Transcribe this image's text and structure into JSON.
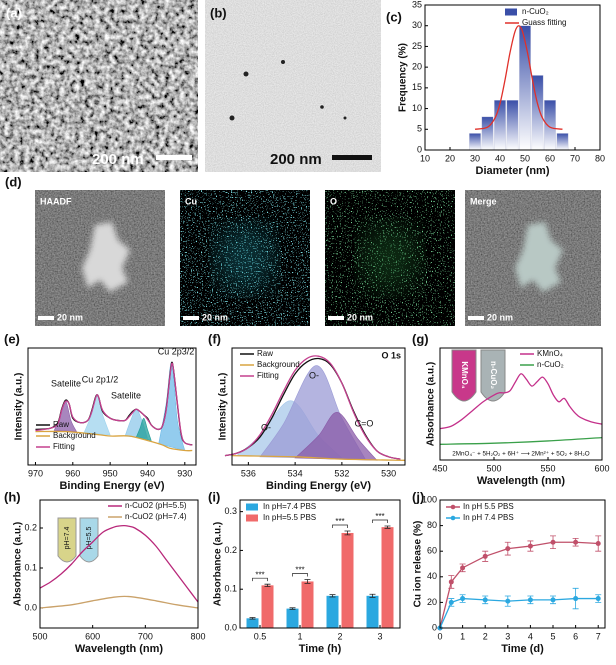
{
  "images": {
    "a": {
      "panel": "(a)",
      "scale_bar": "200 nm"
    },
    "b": {
      "panel": "(b)",
      "scale_bar": "200 nm"
    },
    "d": {
      "panel": "(d)",
      "maps": [
        {
          "label": "HAADF",
          "scale_bar": "20 nm"
        },
        {
          "label": "Cu",
          "scale_bar": "20 nm"
        },
        {
          "label": "O",
          "scale_bar": "20 nm"
        },
        {
          "label": "Merge",
          "scale_bar": "20 nm"
        }
      ]
    }
  },
  "chart_data": [
    {
      "type": "histogram",
      "panel": "(c)",
      "xlabel": "Diameter (nm)",
      "ylabel": "Frequency (%)",
      "name": "n-CuO₂",
      "color": "#3a4fa8",
      "bins": [
        27.5,
        32.5,
        37.5,
        42.5,
        47.5,
        52.5,
        57.5,
        62.5,
        67.5
      ],
      "values": [
        4,
        8,
        12,
        12,
        30,
        18,
        12,
        4
      ],
      "series": [
        {
          "name": "Guass fitting",
          "color": "#e0302a",
          "x": [
            30,
            35,
            38,
            40,
            42,
            44,
            46,
            47.5,
            49,
            51,
            53,
            55,
            57,
            60,
            65
          ],
          "values": [
            5.0,
            5.5,
            7.7,
            11.2,
            16.9,
            23.5,
            28.6,
            30,
            28.6,
            23.5,
            16.9,
            11.2,
            7.7,
            5.5,
            5.0
          ]
        }
      ],
      "xlim": [
        10,
        80
      ],
      "xticks": [
        10,
        20,
        30,
        40,
        50,
        60,
        70,
        80
      ],
      "ylim": [
        0,
        35
      ],
      "yticks": [
        0,
        5,
        10,
        15,
        20,
        25,
        30,
        35
      ]
    },
    {
      "type": "line",
      "panel": "(e)",
      "xlabel": "Binding Energy (eV)",
      "ylabel": "Intensity (a.u.)",
      "annotations": [
        "Satelite",
        "Cu 2p1/2",
        "Satelite",
        "Cu 2p3/2"
      ],
      "xlim": [
        972,
        927
      ],
      "xticks": [
        970,
        960,
        950,
        940,
        930
      ],
      "ylim": [
        0,
        105
      ],
      "components": [
        {
          "color": "#8b5ea8",
          "x": [
            965,
            963.5,
            962,
            960.5,
            959
          ],
          "values": [
            31,
            42,
            58,
            40,
            30
          ]
        },
        {
          "color": "#9dd3ee",
          "x": [
            957,
            955,
            953.5,
            952,
            950
          ],
          "values": [
            29,
            45,
            63,
            45,
            27
          ]
        },
        {
          "color": "#8fc8ea",
          "x": [
            946,
            944.5,
            943,
            941.5,
            940
          ],
          "values": [
            26,
            40,
            50,
            40,
            24
          ]
        },
        {
          "color": "#1f9e9a",
          "x": [
            943,
            942,
            941,
            940,
            939
          ],
          "values": [
            25,
            33,
            42,
            32,
            22
          ]
        },
        {
          "color": "#6fbbe8",
          "x": [
            937,
            935,
            933.5,
            932,
            930
          ],
          "values": [
            19,
            55,
            92,
            40,
            13
          ]
        }
      ],
      "series": [
        {
          "name": "Raw",
          "color": "#111111",
          "x": [
            970,
            966,
            964,
            963,
            962,
            961,
            960,
            958,
            956,
            955,
            954,
            953.5,
            953,
            952,
            950,
            948,
            946,
            945,
            944,
            943,
            942,
            941,
            940,
            939,
            938,
            937,
            936,
            935,
            934,
            933.5,
            933,
            932,
            931,
            930,
            928
          ],
          "values": [
            32,
            33,
            38,
            50,
            58,
            55,
            42,
            38,
            40,
            48,
            60,
            63,
            60,
            48,
            42,
            40,
            40,
            44,
            48,
            50,
            48,
            45,
            42,
            36,
            33,
            32,
            35,
            50,
            80,
            92,
            85,
            55,
            28,
            20,
            18
          ]
        },
        {
          "name": "Background",
          "color": "#d9a441",
          "x": [
            970,
            962,
            955,
            950,
            945,
            940,
            936,
            934,
            930,
            928
          ],
          "values": [
            30,
            30,
            28,
            26,
            26,
            22,
            18,
            15,
            13,
            13
          ]
        },
        {
          "name": "Fitting",
          "color": "#c4408e",
          "x": [
            970,
            966,
            964,
            963,
            962,
            961,
            960,
            958,
            956,
            955,
            954,
            953.5,
            953,
            952,
            950,
            948,
            946,
            945,
            944,
            943,
            942,
            941,
            940,
            939,
            938,
            937,
            936,
            935,
            934,
            933.5,
            933,
            932,
            931,
            930,
            928
          ],
          "values": [
            31,
            33,
            37,
            49,
            57,
            55,
            43,
            38,
            40,
            47,
            59,
            63,
            60,
            49,
            42,
            40,
            40,
            43,
            47,
            50,
            48,
            45,
            41,
            36,
            33,
            32,
            35,
            49,
            79,
            91,
            85,
            56,
            29,
            20,
            18
          ]
        }
      ]
    },
    {
      "type": "line",
      "panel": "(f)",
      "title": "O 1s",
      "xlabel": "Binding Energy (eV)",
      "ylabel": "Intensity (a.u.)",
      "annotations": [
        "O-",
        "O-",
        "C=O"
      ],
      "xlim": [
        536.7,
        529.3
      ],
      "xticks": [
        536,
        534,
        532,
        530
      ],
      "ylim": [
        0,
        100
      ],
      "components": [
        {
          "color": "#a8c8ea",
          "x": [
            536.5,
            535.5,
            534.2,
            533,
            532
          ],
          "values": [
            8,
            25,
            55,
            25,
            6
          ]
        },
        {
          "color": "#9b9bd6",
          "x": [
            535.5,
            534.5,
            533.1,
            532,
            531
          ],
          "values": [
            7,
            35,
            85,
            40,
            5
          ]
        },
        {
          "color": "#8a5ba8",
          "x": [
            534,
            533,
            532.2,
            531.3,
            530.5
          ],
          "values": [
            6,
            25,
            45,
            22,
            4
          ]
        }
      ],
      "series": [
        {
          "name": "Raw",
          "color": "#111111",
          "x": [
            537,
            536.5,
            536,
            535.5,
            535,
            534.5,
            534,
            533.5,
            533,
            532.5,
            532,
            531.5,
            531,
            530.5,
            530,
            529.5
          ],
          "values": [
            8,
            10,
            15,
            24,
            40,
            60,
            78,
            88,
            91,
            86,
            70,
            46,
            26,
            12,
            7,
            5
          ]
        },
        {
          "name": "Background",
          "color": "#d9a441",
          "x": [
            536.7,
            534,
            532,
            529.3
          ],
          "values": [
            8,
            7,
            5,
            4
          ]
        },
        {
          "name": "Fitting",
          "color": "#c4408e",
          "x": [
            537,
            536.5,
            536,
            535.5,
            535,
            534.5,
            534,
            533.5,
            533,
            532.5,
            532,
            531.5,
            531,
            530.5,
            530,
            529.5
          ],
          "values": [
            8,
            10,
            15,
            26,
            43,
            63,
            81,
            91,
            93,
            87,
            70,
            45,
            25,
            12,
            7,
            5
          ]
        }
      ]
    },
    {
      "type": "line",
      "panel": "(g)",
      "xlabel": "Wavelength (nm)",
      "ylabel": "Absorbance (a.u.)",
      "inset_labels": [
        "KMnO₄",
        "n-CuO₂"
      ],
      "annotation": "2MnO₄⁻ + 5H₂O₂ + 6H⁺ ⟶ 2Mn²⁺ + 5O₂ + 8H₂O",
      "xlim": [
        450,
        600
      ],
      "xticks": [
        450,
        500,
        550,
        600
      ],
      "ylim": [
        0,
        100
      ],
      "series": [
        {
          "name": "KMnO₄",
          "color": "#c4308a",
          "x": [
            450,
            460,
            470,
            480,
            490,
            500,
            505,
            510,
            515,
            520,
            525,
            530,
            535,
            540,
            545,
            550,
            555,
            560,
            565,
            570,
            575,
            580,
            590,
            600
          ],
          "values": [
            28,
            30,
            36,
            44,
            52,
            58,
            60,
            60,
            62,
            70,
            77,
            72,
            66,
            70,
            74,
            68,
            58,
            52,
            55,
            48,
            42,
            38,
            34,
            32
          ]
        },
        {
          "name": "n-CuO₂",
          "color": "#3aa04a",
          "x": [
            450,
            500,
            550,
            600
          ],
          "values": [
            14,
            15,
            17,
            20
          ]
        }
      ]
    },
    {
      "type": "line",
      "panel": "(h)",
      "xlabel": "Wavelength (nm)",
      "ylabel": "Absorbance (a.u.)",
      "inset_labels": [
        "pH=7.4",
        "pH=5.5"
      ],
      "xlim": [
        500,
        800
      ],
      "xticks": [
        500,
        600,
        700,
        800
      ],
      "ylim": [
        -0.05,
        0.27
      ],
      "yticks": [
        {
          "value": 0,
          "label": "0.0"
        },
        0.1,
        0.2
      ],
      "series": [
        {
          "name": "n-CuO2 (pH=5.5)",
          "color": "#b8287a",
          "x": [
            500,
            520,
            540,
            560,
            580,
            600,
            620,
            640,
            650,
            660,
            670,
            680,
            700,
            720,
            740,
            760,
            780,
            800
          ],
          "values": [
            0.05,
            0.065,
            0.085,
            0.11,
            0.14,
            0.165,
            0.19,
            0.202,
            0.205,
            0.206,
            0.204,
            0.2,
            0.182,
            0.155,
            0.12,
            0.085,
            0.05,
            0.015
          ]
        },
        {
          "name": "n-CuO2 (pH=7.4)",
          "color": "#caa26a",
          "x": [
            500,
            560,
            600,
            640,
            660,
            680,
            720,
            760,
            800
          ],
          "values": [
            0,
            0.008,
            0.018,
            0.027,
            0.029,
            0.027,
            0.018,
            0.008,
            0
          ]
        }
      ]
    },
    {
      "type": "bar",
      "panel": "(i)",
      "xlabel": "Time (h)",
      "ylabel": "Absorbance (a.u.)",
      "categories": [
        "0.5",
        "1",
        "2",
        "3"
      ],
      "significance": [
        "***",
        "***",
        "***",
        "***"
      ],
      "ylim": [
        0,
        0.33
      ],
      "yticks": [
        {
          "value": 0,
          "label": "0.0"
        },
        0.1,
        0.2,
        0.3
      ],
      "series": [
        {
          "name": "In pH=7.4 PBS",
          "color": "#2ba8e0",
          "values": [
            0.025,
            0.05,
            0.083,
            0.083
          ],
          "errors": [
            0.002,
            0.002,
            0.003,
            0.004
          ]
        },
        {
          "name": "In pH=5.5 PBS",
          "color": "#f06a6a",
          "values": [
            0.11,
            0.12,
            0.245,
            0.26
          ],
          "errors": [
            0.003,
            0.005,
            0.005,
            0.003
          ]
        }
      ]
    },
    {
      "type": "line",
      "panel": "(j)",
      "xlabel": "Time (d)",
      "ylabel": "Cu ion release (%)",
      "markers": true,
      "xlim": [
        0,
        7.3
      ],
      "xticks": [
        0,
        1,
        2,
        3,
        4,
        5,
        6,
        7
      ],
      "ylim": [
        0,
        100
      ],
      "yticks": [
        0,
        20,
        40,
        60,
        80,
        100
      ],
      "series": [
        {
          "name": "In pH 5.5 PBS",
          "color": "#c0506a",
          "x": [
            0,
            0.5,
            1,
            2,
            3,
            4,
            5,
            6,
            7
          ],
          "values": [
            0,
            36,
            47,
            56,
            62,
            64,
            67,
            67,
            66
          ],
          "errors": [
            0,
            5,
            3,
            4,
            5,
            4,
            5,
            3,
            6
          ]
        },
        {
          "name": "In pH 7.4 PBS",
          "color": "#2ba8e0",
          "x": [
            0,
            0.5,
            1,
            2,
            3,
            4,
            5,
            6,
            7
          ],
          "values": [
            0,
            20,
            23,
            22,
            21,
            22,
            22,
            23,
            23
          ],
          "errors": [
            0,
            3,
            3,
            3,
            4,
            3,
            3,
            8,
            3
          ]
        }
      ]
    }
  ]
}
